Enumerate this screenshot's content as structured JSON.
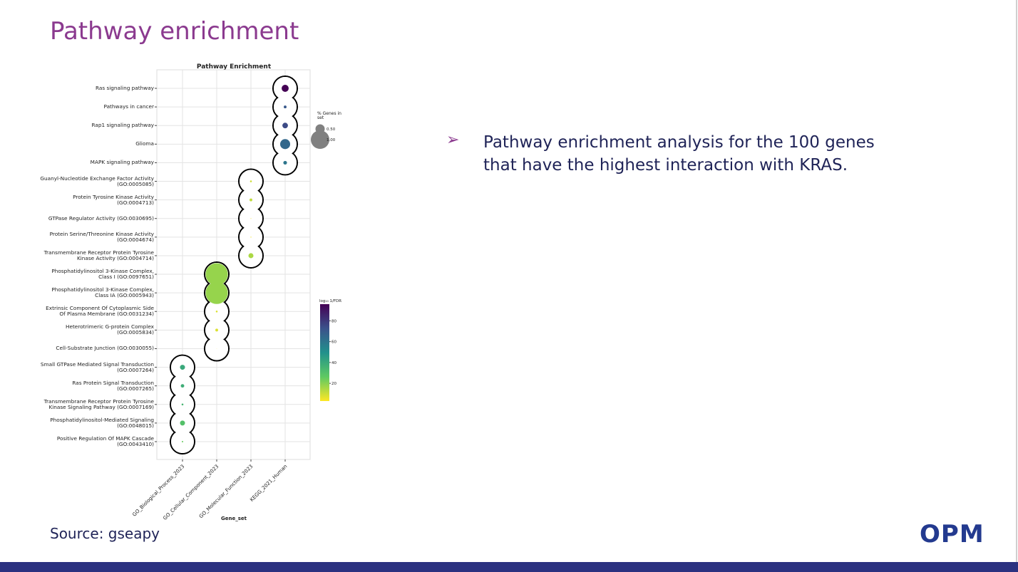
{
  "slide_title": "Pathway enrichment",
  "bullet": "Pathway enrichment analysis for the 100 genes that have the highest interaction with KRAS.",
  "source": "Source: gseapy",
  "logo": "OPM",
  "chart_data": {
    "type": "dot",
    "title": "Pathway Enrichment",
    "x_label": "Gene_set",
    "grid": true,
    "colormap": "viridis",
    "color_label": "log₁₀ 1/FDR",
    "clim": [
      3,
      96
    ],
    "cticks": [
      20,
      40,
      60,
      80
    ],
    "size_label": "% Genes in set",
    "size_ticks": [
      {
        "value": 0.5,
        "label": "0.50"
      },
      {
        "value": 1,
        "label": "1.00"
      }
    ],
    "groups": [
      {
        "name": "GO_Biological_Process_2023",
        "terms": [
          "Small GTPase Mediated Signal Transduction (GO:0007264)",
          "Ras Protein Signal Transduction (GO:0007265)",
          "Transmembrane Receptor Protein Tyrosine Kinase Signaling Pathway (GO:0007169)",
          "Phosphatidylinositol-Mediated Signaling (GO:0048015)",
          "Positive Regulation Of MAPK Cascade (GO:0043410)"
        ],
        "sizes": [
          0.27,
          0.19,
          0.1,
          0.27,
          0.08
        ],
        "values": [
          40,
          38,
          35,
          30,
          25
        ]
      },
      {
        "name": "GO_Cellular_Component_2023",
        "terms": [
          "Phosphatidylinositol 3-Kinase Complex, Class I (GO:0097651)",
          "Phosphatidylinositol 3-Kinase Complex, Class IA (GO:0005943)",
          "Extrinsic Component Of Cytoplasmic Side Of Plasma Membrane (GO:0031234)",
          "Heterotrimeric G-protein Complex (GO:0005834)",
          "Cell-Substrate Junction (GO:0030055)"
        ],
        "sizes": [
          1.2,
          1.2,
          0.1,
          0.15,
          0.02
        ],
        "values": [
          18,
          18,
          8,
          8,
          5
        ]
      },
      {
        "name": "GO_Molecular_Function_2023",
        "terms": [
          "Guanyl-Nucleotide Exchange Factor Activity (GO:0005085)",
          "Protein Tyrosine Kinase Activity (GO:0004713)",
          "GTPase Regulator Activity (GO:0030695)",
          "Protein Serine/Threonine Kinase Activity (GO:0004674)",
          "Transmembrane Receptor Protein Tyrosine Kinase Activity (GO:0004714)"
        ],
        "sizes": [
          0.1,
          0.15,
          0.04,
          0.05,
          0.27
        ],
        "values": [
          10,
          12,
          5,
          5,
          15
        ]
      },
      {
        "name": "KEGG_2021_Human",
        "terms": [
          "Ras signaling pathway",
          "Pathways in cancer",
          "Rap1 signaling pathway",
          "Glioma",
          "MAPK signaling pathway"
        ],
        "sizes": [
          0.38,
          0.15,
          0.3,
          0.54,
          0.2
        ],
        "values": [
          98,
          70,
          75,
          65,
          60
        ]
      }
    ]
  }
}
